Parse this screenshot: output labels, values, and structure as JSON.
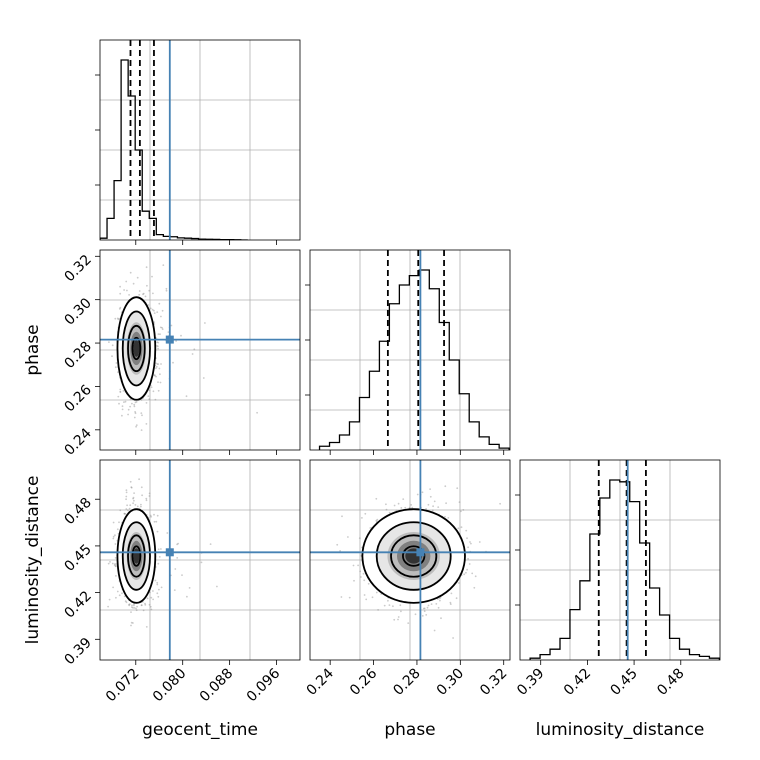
{
  "chart_data": {
    "type": "corner",
    "parameters": [
      {
        "name": "geocent_time",
        "label": "geocent_time",
        "range": [
          0.0659,
          0.1
        ],
        "ticks": [
          0.072,
          0.08,
          0.088,
          0.096
        ],
        "tick_labels": [
          "0.072",
          "0.080",
          "0.088",
          "0.096"
        ],
        "truth": 0.0778,
        "quantiles": [
          0.0711,
          0.0727,
          0.0751
        ],
        "hist_edges": [
          0.0659,
          0.0671,
          0.0683,
          0.0695,
          0.0707,
          0.0719,
          0.0731,
          0.0743,
          0.0755,
          0.0767,
          0.0779,
          0.0791,
          0.0803,
          0.0815,
          0.0827,
          0.0839,
          0.0851,
          0.0863,
          0.0875,
          0.0887,
          0.0899,
          0.0911
        ],
        "hist_counts": [
          0.01,
          0.12,
          0.33,
          1.0,
          0.8,
          0.5,
          0.16,
          0.12,
          0.03,
          0.02,
          0.018,
          0.012,
          0.01,
          0.008,
          0.005,
          0.004,
          0.003,
          0.002,
          0.002,
          0.001,
          0.0
        ]
      },
      {
        "name": "phase",
        "label": "phase",
        "range": [
          0.2307,
          0.3229
        ],
        "ticks": [
          0.24,
          0.26,
          0.28,
          0.3,
          0.32
        ],
        "tick_labels": [
          "0.24",
          "0.26",
          "0.28",
          "0.30",
          "0.32"
        ],
        "truth": 0.2816,
        "quantiles": [
          0.2666,
          0.2806,
          0.2925
        ],
        "hist_edges": [
          0.2351,
          0.2397,
          0.2443,
          0.2489,
          0.2535,
          0.2581,
          0.2627,
          0.2673,
          0.2719,
          0.2765,
          0.2811,
          0.2857,
          0.2903,
          0.2949,
          0.2995,
          0.3041,
          0.3087,
          0.3133,
          0.3179,
          0.3225
        ],
        "hist_counts": [
          0.02,
          0.04,
          0.08,
          0.15,
          0.28,
          0.42,
          0.58,
          0.78,
          0.88,
          0.93,
          0.96,
          0.86,
          0.68,
          0.48,
          0.3,
          0.15,
          0.07,
          0.03,
          0.01
        ]
      },
      {
        "name": "luminosity_distance",
        "label": "luminosity_distance",
        "range": [
          0.3767,
          0.5052
        ],
        "ticks": [
          0.39,
          0.42,
          0.45,
          0.48
        ],
        "tick_labels": [
          "0.39",
          "0.42",
          "0.45",
          "0.48"
        ],
        "truth": 0.4459,
        "quantiles": [
          0.4273,
          0.4452,
          0.4576
        ],
        "hist_edges": [
          0.3832,
          0.3896,
          0.396,
          0.4024,
          0.4088,
          0.4152,
          0.4216,
          0.428,
          0.4344,
          0.4408,
          0.4472,
          0.4536,
          0.46,
          0.4664,
          0.4728,
          0.4792,
          0.4856,
          0.492,
          0.4984,
          0.5048
        ],
        "hist_counts": [
          0.01,
          0.03,
          0.06,
          0.12,
          0.28,
          0.44,
          0.7,
          0.9,
          1.0,
          0.99,
          0.88,
          0.65,
          0.4,
          0.25,
          0.12,
          0.06,
          0.03,
          0.02,
          0.01
        ]
      }
    ],
    "density_2d": [
      {
        "x": "geocent_time",
        "y": "phase",
        "center": [
          0.0721,
          0.2775
        ],
        "sigma": [
          0.0015,
          0.011
        ]
      },
      {
        "x": "geocent_time",
        "y": "luminosity_distance",
        "center": [
          0.0721,
          0.4435
        ],
        "sigma": [
          0.0015,
          0.014
        ]
      },
      {
        "x": "phase",
        "y": "luminosity_distance",
        "center": [
          0.2785,
          0.4435
        ],
        "sigma": [
          0.011,
          0.014
        ]
      }
    ],
    "colors": {
      "truth": "#4682b4",
      "line": "#000000",
      "grid": "#b0b0b0",
      "scatter": "#8c8c8c"
    }
  }
}
